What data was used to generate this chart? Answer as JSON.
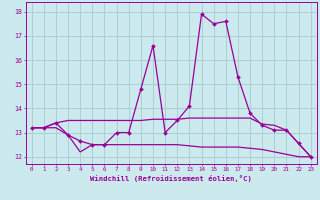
{
  "xlabel": "Windchill (Refroidissement éolien,°C)",
  "bg_color": "#cce9ed",
  "grid_color": "#aacfd4",
  "line_color": "#990099",
  "xlim": [
    -0.5,
    23.5
  ],
  "ylim": [
    11.7,
    18.4
  ],
  "yticks": [
    12,
    13,
    14,
    15,
    16,
    17,
    18
  ],
  "xticks": [
    0,
    1,
    2,
    3,
    4,
    5,
    6,
    7,
    8,
    9,
    10,
    11,
    12,
    13,
    14,
    15,
    16,
    17,
    18,
    19,
    20,
    21,
    22,
    23
  ],
  "line1_x": [
    0,
    1,
    2,
    3,
    4,
    5,
    6,
    7,
    8,
    9,
    10,
    11,
    12,
    13,
    14,
    15,
    16,
    17,
    18,
    19,
    20,
    21,
    22,
    23
  ],
  "line1_y": [
    13.2,
    13.2,
    13.4,
    12.9,
    12.65,
    12.5,
    12.5,
    13.0,
    13.0,
    14.8,
    16.6,
    13.0,
    13.5,
    14.1,
    17.9,
    17.5,
    17.6,
    15.3,
    13.8,
    13.3,
    13.1,
    13.1,
    12.55,
    12.0
  ],
  "line2_x": [
    0,
    1,
    2,
    3,
    4,
    5,
    6,
    7,
    8,
    9,
    10,
    11,
    12,
    13,
    14,
    15,
    16,
    17,
    18,
    19,
    20,
    21,
    22,
    23
  ],
  "line2_y": [
    13.2,
    13.2,
    13.4,
    13.5,
    13.5,
    13.5,
    13.5,
    13.5,
    13.5,
    13.5,
    13.55,
    13.55,
    13.55,
    13.6,
    13.6,
    13.6,
    13.6,
    13.6,
    13.6,
    13.35,
    13.3,
    13.1,
    12.55,
    12.0
  ],
  "line3_x": [
    0,
    1,
    2,
    3,
    4,
    5,
    6,
    7,
    8,
    9,
    10,
    11,
    12,
    13,
    14,
    15,
    16,
    17,
    18,
    19,
    20,
    21,
    22,
    23
  ],
  "line3_y": [
    13.2,
    13.2,
    13.2,
    12.9,
    12.2,
    12.5,
    12.5,
    12.5,
    12.5,
    12.5,
    12.5,
    12.5,
    12.5,
    12.45,
    12.4,
    12.4,
    12.4,
    12.4,
    12.35,
    12.3,
    12.2,
    12.1,
    12.0,
    12.0
  ]
}
